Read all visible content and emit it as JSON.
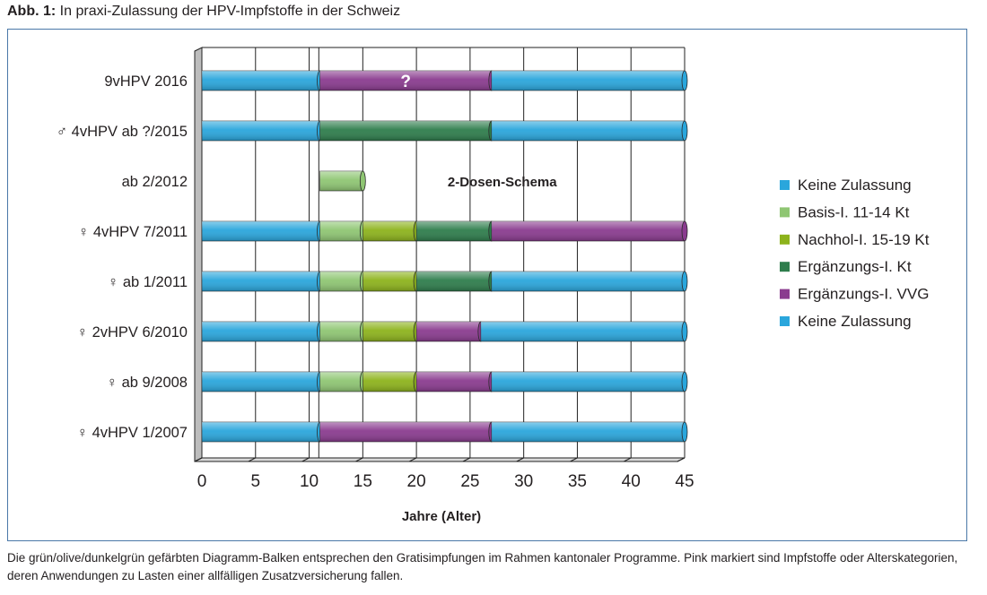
{
  "figure": {
    "label": "Abb. 1:",
    "title": "In praxi-Zulassung der HPV-Impfstoffe in der Schweiz",
    "caption": "Die grün/olive/dunkelgrün gefärbten Diagramm-Balken entsprechen den Gratisimpfungen im Rahmen kantonaler Programme. Pink markiert sind Impfstoffe oder Alterskategorien, deren Anwendungen zu Lasten einer allfälligen Zusatzversicherung fallen."
  },
  "colors": {
    "keine": "#2aa6dc",
    "basis": "#8fc673",
    "nachhol": "#8db31c",
    "ergaenzung_kt": "#2e7d4c",
    "ergaenzung_vvg": "#8a3b8f"
  },
  "chart_data": {
    "type": "bar",
    "orientation": "horizontal",
    "stacked": true,
    "xlabel": "Jahre (Alter)",
    "xlim": [
      0,
      45
    ],
    "xticks": [
      0,
      5,
      10,
      15,
      20,
      25,
      30,
      35,
      40,
      45
    ],
    "grid": true,
    "legend_position": "right",
    "legend": [
      {
        "label": "Keine Zulassung",
        "color_key": "keine"
      },
      {
        "label": "Basis-I. 11-14 Kt",
        "color_key": "basis"
      },
      {
        "label": "Nachhol-I. 15-19 Kt",
        "color_key": "nachhol"
      },
      {
        "label": "Ergänzungs-I. Kt",
        "color_key": "ergaenzung_kt"
      },
      {
        "label": "Ergänzungs-I. VVG",
        "color_key": "ergaenzung_vvg"
      },
      {
        "label": "Keine Zulassung",
        "color_key": "keine"
      }
    ],
    "categories": [
      {
        "label": "9vHPV 2016",
        "segments": [
          {
            "from": 0,
            "to": 11,
            "color_key": "keine"
          },
          {
            "from": 11,
            "to": 27,
            "color_key": "ergaenzung_vvg",
            "label": "?"
          },
          {
            "from": 27,
            "to": 45,
            "color_key": "keine"
          }
        ]
      },
      {
        "label": "♂ 4vHPV ab ?/2015",
        "segments": [
          {
            "from": 0,
            "to": 11,
            "color_key": "keine"
          },
          {
            "from": 11,
            "to": 27,
            "color_key": "ergaenzung_kt"
          },
          {
            "from": 27,
            "to": 45,
            "color_key": "keine"
          }
        ]
      },
      {
        "label": "ab 2/2012",
        "segments": [
          {
            "from": 11,
            "to": 15,
            "color_key": "basis"
          }
        ],
        "annotation": "2-Dosen-Schema",
        "annotation_x": 28
      },
      {
        "label": "♀ 4vHPV 7/2011",
        "segments": [
          {
            "from": 0,
            "to": 11,
            "color_key": "keine"
          },
          {
            "from": 11,
            "to": 15,
            "color_key": "basis"
          },
          {
            "from": 15,
            "to": 20,
            "color_key": "nachhol"
          },
          {
            "from": 20,
            "to": 27,
            "color_key": "ergaenzung_kt"
          },
          {
            "from": 27,
            "to": 45,
            "color_key": "ergaenzung_vvg"
          }
        ]
      },
      {
        "label": "♀ ab 1/2011",
        "segments": [
          {
            "from": 0,
            "to": 11,
            "color_key": "keine"
          },
          {
            "from": 11,
            "to": 15,
            "color_key": "basis"
          },
          {
            "from": 15,
            "to": 20,
            "color_key": "nachhol"
          },
          {
            "from": 20,
            "to": 27,
            "color_key": "ergaenzung_kt"
          },
          {
            "from": 27,
            "to": 45,
            "color_key": "keine"
          }
        ]
      },
      {
        "label": "♀ 2vHPV 6/2010",
        "segments": [
          {
            "from": 0,
            "to": 11,
            "color_key": "keine"
          },
          {
            "from": 11,
            "to": 15,
            "color_key": "basis"
          },
          {
            "from": 15,
            "to": 20,
            "color_key": "nachhol"
          },
          {
            "from": 20,
            "to": 26,
            "color_key": "ergaenzung_vvg"
          },
          {
            "from": 26,
            "to": 45,
            "color_key": "keine"
          }
        ]
      },
      {
        "label": "♀ ab 9/2008",
        "segments": [
          {
            "from": 0,
            "to": 11,
            "color_key": "keine"
          },
          {
            "from": 11,
            "to": 15,
            "color_key": "basis"
          },
          {
            "from": 15,
            "to": 20,
            "color_key": "nachhol"
          },
          {
            "from": 20,
            "to": 27,
            "color_key": "ergaenzung_vvg"
          },
          {
            "from": 27,
            "to": 45,
            "color_key": "keine"
          }
        ]
      },
      {
        "label": "♀ 4vHPV 1/2007",
        "segments": [
          {
            "from": 0,
            "to": 11,
            "color_key": "keine"
          },
          {
            "from": 11,
            "to": 27,
            "color_key": "ergaenzung_vvg"
          },
          {
            "from": 27,
            "to": 45,
            "color_key": "keine"
          }
        ]
      }
    ]
  }
}
